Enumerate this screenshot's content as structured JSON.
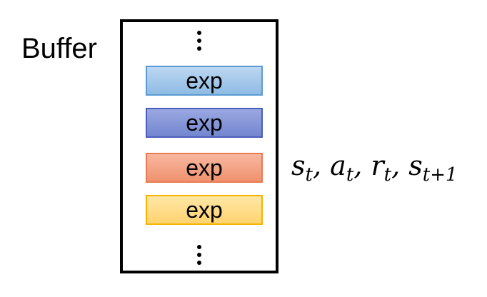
{
  "buffer": {
    "label": "Buffer",
    "experiences": [
      {
        "label": "exp",
        "color": "#8fbbe4"
      },
      {
        "label": "exp",
        "color": "#7386cf"
      },
      {
        "label": "exp",
        "color": "#ef926f"
      },
      {
        "label": "exp",
        "color": "#ffd36f"
      }
    ]
  },
  "transition": {
    "terms": [
      {
        "symbol": "s",
        "sub": "t"
      },
      {
        "symbol": "a",
        "sub": "t"
      },
      {
        "symbol": "r",
        "sub": "t"
      },
      {
        "symbol": "s",
        "sub": "t+1"
      }
    ]
  }
}
